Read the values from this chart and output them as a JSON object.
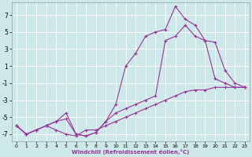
{
  "xlabel": "Windchill (Refroidissement éolien,°C)",
  "bg_color": "#cce8e8",
  "line_color": "#993399",
  "grid_color": "#ffffff",
  "xlim": [
    -0.5,
    23.5
  ],
  "ylim": [
    -7.8,
    8.5
  ],
  "xticks": [
    0,
    1,
    2,
    3,
    4,
    5,
    6,
    7,
    8,
    9,
    10,
    11,
    12,
    13,
    14,
    15,
    16,
    17,
    18,
    19,
    20,
    21,
    22,
    23
  ],
  "yticks": [
    -7,
    -5,
    -3,
    -1,
    1,
    3,
    5,
    7
  ],
  "line1_x": [
    0,
    1,
    2,
    3,
    4,
    5,
    6,
    7,
    8,
    9,
    10,
    11,
    12,
    13,
    14,
    15,
    16,
    17,
    18,
    19,
    20,
    21,
    22,
    23
  ],
  "line1_y": [
    -6.0,
    -7.0,
    -6.5,
    -6.0,
    -6.5,
    -7.0,
    -7.2,
    -6.5,
    -6.5,
    -6.0,
    -5.5,
    -5.0,
    -4.5,
    -4.0,
    -3.5,
    -3.0,
    -2.5,
    -2.0,
    -1.8,
    -1.8,
    -1.5,
    -1.5,
    -1.5,
    -1.5
  ],
  "line2_x": [
    0,
    1,
    2,
    3,
    4,
    5,
    6,
    7,
    8,
    9,
    10,
    11,
    12,
    13,
    14,
    15,
    16,
    17,
    18,
    19,
    20,
    21,
    22,
    23
  ],
  "line2_y": [
    -6.0,
    -7.0,
    -6.5,
    -6.0,
    -5.5,
    -5.2,
    -7.0,
    -7.2,
    -6.8,
    -5.5,
    -4.5,
    -4.0,
    -3.5,
    -3.0,
    -2.5,
    4.0,
    4.5,
    5.8,
    4.5,
    4.0,
    3.8,
    0.5,
    -1.0,
    -1.5
  ],
  "line3_x": [
    0,
    1,
    2,
    3,
    4,
    5,
    6,
    7,
    8,
    9,
    10,
    11,
    12,
    13,
    14,
    15,
    16,
    17,
    18,
    19,
    20,
    21,
    22,
    23
  ],
  "line3_y": [
    -6.0,
    -7.0,
    -6.5,
    -6.0,
    -5.5,
    -4.5,
    -7.0,
    -7.2,
    -6.8,
    -5.5,
    -3.5,
    1.0,
    2.5,
    4.5,
    5.0,
    5.3,
    8.0,
    6.5,
    5.8,
    4.0,
    -0.5,
    -1.0,
    -1.5,
    -1.5
  ]
}
